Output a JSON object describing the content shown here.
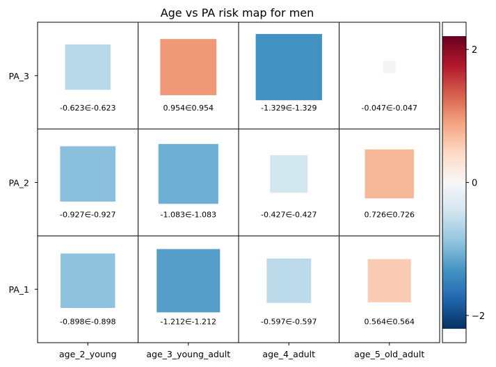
{
  "chart_data": {
    "type": "heatmap",
    "title": "Age vs PA risk map for men",
    "xlabel": "",
    "ylabel": "",
    "x_categories": [
      "age_2_young",
      "age_3_young_adult",
      "age_4_adult",
      "age_5_old_adult"
    ],
    "y_categories": [
      "PA_3",
      "PA_2",
      "PA_1"
    ],
    "cells": [
      {
        "row": 0,
        "col": 0,
        "value": -0.623,
        "label": "-0.623∈-0.623"
      },
      {
        "row": 0,
        "col": 1,
        "value": 0.954,
        "label": "0.954∈0.954"
      },
      {
        "row": 0,
        "col": 2,
        "value": -1.329,
        "label": "-1.329∈-1.329"
      },
      {
        "row": 0,
        "col": 3,
        "value": -0.047,
        "label": "-0.047∈-0.047"
      },
      {
        "row": 1,
        "col": 0,
        "value": -0.927,
        "label": "-0.927∈-0.927"
      },
      {
        "row": 1,
        "col": 1,
        "value": -1.083,
        "label": "-1.083∈-1.083"
      },
      {
        "row": 1,
        "col": 2,
        "value": -0.427,
        "label": "-0.427∈-0.427"
      },
      {
        "row": 1,
        "col": 3,
        "value": 0.726,
        "label": "0.726∈0.726"
      },
      {
        "row": 2,
        "col": 0,
        "value": -0.898,
        "label": "-0.898∈-0.898"
      },
      {
        "row": 2,
        "col": 1,
        "value": -1.212,
        "label": "-1.212∈-1.212"
      },
      {
        "row": 2,
        "col": 2,
        "value": -0.597,
        "label": "-0.597∈-0.597"
      },
      {
        "row": 2,
        "col": 3,
        "value": 0.564,
        "label": "0.564∈0.564"
      }
    ],
    "colorbar": {
      "colormap": "RdBu_r",
      "range": [
        -2.2,
        2.2
      ],
      "ticks": [
        2,
        0,
        -2
      ],
      "tick_labels": [
        "2",
        "0",
        "−2"
      ]
    },
    "grid": true
  }
}
